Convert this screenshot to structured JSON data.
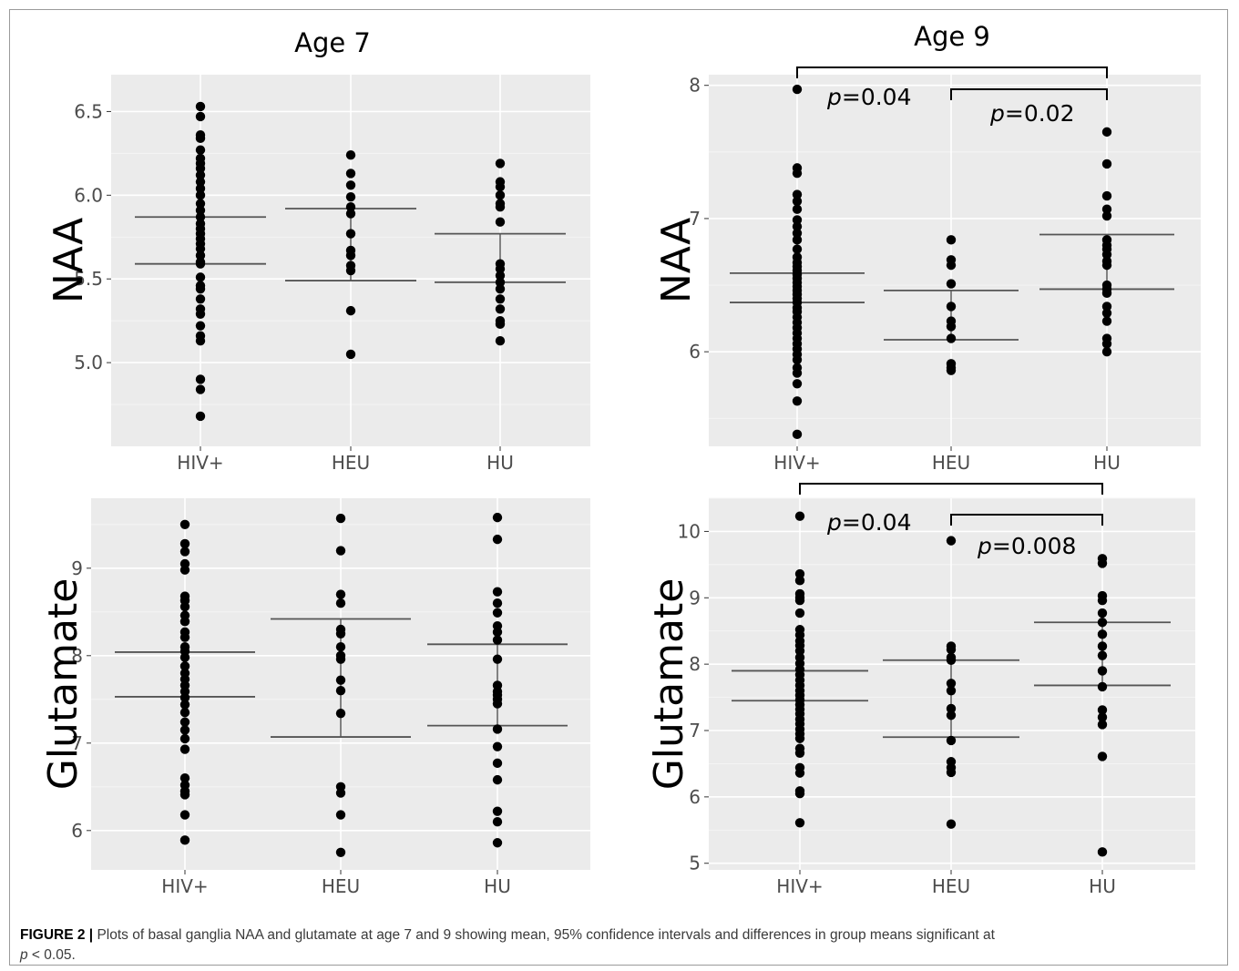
{
  "caption": {
    "label": "FIGURE 2 |",
    "text": " Plots of basal ganglia NAA and glutamate at age 7 and 9 showing mean, 95% confidence intervals and differences in group means significant at ",
    "pvar": "p",
    "tail": " < 0.05."
  },
  "chart_data": [
    {
      "type": "scatter",
      "panel": "top-left",
      "title": "Age 7",
      "ylabel": "NAA",
      "categories": [
        "HIV+",
        "HEU",
        "HU"
      ],
      "ylim": [
        4.5,
        6.72
      ],
      "yticks": [
        5.0,
        5.5,
        6.0,
        6.5
      ],
      "ytick_labels": [
        "5.0",
        "5.5",
        "6.0",
        "6.5"
      ],
      "ci": [
        [
          5.59,
          5.87
        ],
        [
          5.49,
          5.92
        ],
        [
          5.48,
          5.77
        ]
      ],
      "points": [
        [
          6.53,
          6.47,
          6.36,
          6.34,
          6.27,
          6.22,
          6.19,
          6.16,
          6.12,
          6.08,
          6.04,
          6.0,
          5.95,
          5.91,
          5.87,
          5.83,
          5.8,
          5.77,
          5.74,
          5.71,
          5.68,
          5.64,
          5.6,
          5.59,
          5.51,
          5.46,
          5.44,
          5.38,
          5.32,
          5.29,
          5.22,
          5.16,
          5.13,
          4.9,
          4.84,
          4.68
        ],
        [
          6.24,
          6.13,
          6.06,
          5.99,
          5.93,
          5.89,
          5.77,
          5.67,
          5.64,
          5.58,
          5.55,
          5.31,
          5.05
        ],
        [
          6.19,
          6.08,
          6.05,
          6.0,
          5.95,
          5.93,
          5.84,
          5.59,
          5.56,
          5.52,
          5.48,
          5.44,
          5.38,
          5.32,
          5.25,
          5.23,
          5.13
        ]
      ]
    },
    {
      "type": "scatter",
      "panel": "top-right",
      "title": "Age 9",
      "ylabel": "NAA",
      "categories": [
        "HIV+",
        "HEU",
        "HU"
      ],
      "ylim": [
        5.29,
        8.08
      ],
      "yticks": [
        6,
        7,
        8
      ],
      "ytick_labels": [
        "6",
        "7",
        "8"
      ],
      "ci": [
        [
          6.37,
          6.59
        ],
        [
          6.09,
          6.46
        ],
        [
          6.47,
          6.88
        ]
      ],
      "points": [
        [
          7.97,
          7.38,
          7.34,
          7.18,
          7.13,
          7.07,
          6.99,
          6.94,
          6.89,
          6.84,
          6.77,
          6.71,
          6.67,
          6.64,
          6.61,
          6.58,
          6.55,
          6.52,
          6.49,
          6.46,
          6.43,
          6.4,
          6.37,
          6.33,
          6.3,
          6.26,
          6.22,
          6.18,
          6.14,
          6.1,
          6.06,
          6.02,
          5.98,
          5.94,
          5.88,
          5.84,
          5.76,
          5.63,
          5.38
        ],
        [
          6.84,
          6.69,
          6.65,
          6.51,
          6.34,
          6.23,
          6.19,
          6.1,
          5.91,
          5.88,
          5.86
        ],
        [
          7.65,
          7.41,
          7.17,
          7.07,
          7.02,
          6.84,
          6.8,
          6.77,
          6.73,
          6.68,
          6.65,
          6.5,
          6.47,
          6.44,
          6.34,
          6.29,
          6.23,
          6.1,
          6.06,
          6.0
        ]
      ],
      "brackets": [
        {
          "from": "HIV+",
          "to": "HU",
          "label_var": "p",
          "label": "=0.04"
        },
        {
          "from": "HEU",
          "to": "HU",
          "label_var": "p",
          "label": "=0.02"
        }
      ]
    },
    {
      "type": "scatter",
      "panel": "bottom-left",
      "title": "",
      "ylabel": "Glutamate",
      "categories": [
        "HIV+",
        "HEU",
        "HU"
      ],
      "ylim": [
        5.55,
        9.8
      ],
      "yticks": [
        6,
        7,
        8,
        9
      ],
      "ytick_labels": [
        "6",
        "7",
        "8",
        "9"
      ],
      "ci": [
        [
          7.53,
          8.04
        ],
        [
          7.07,
          8.42
        ],
        [
          7.2,
          8.13
        ]
      ],
      "points": [
        [
          9.5,
          9.28,
          9.19,
          9.05,
          8.98,
          8.68,
          8.63,
          8.56,
          8.46,
          8.39,
          8.27,
          8.21,
          8.1,
          8.05,
          7.98,
          7.88,
          7.8,
          7.73,
          7.66,
          7.59,
          7.52,
          7.44,
          7.35,
          7.24,
          7.15,
          7.05,
          6.93,
          6.6,
          6.52,
          6.45,
          6.41,
          6.18,
          5.89
        ],
        [
          9.57,
          9.2,
          8.7,
          8.6,
          8.3,
          8.25,
          8.1,
          8.0,
          7.96,
          7.72,
          7.6,
          7.34,
          6.5,
          6.43,
          6.18,
          5.75
        ],
        [
          9.58,
          9.33,
          8.73,
          8.6,
          8.49,
          8.34,
          8.27,
          8.18,
          7.96,
          7.66,
          7.59,
          7.55,
          7.5,
          7.45,
          7.16,
          6.96,
          6.77,
          6.58,
          6.22,
          6.1,
          5.86
        ]
      ]
    },
    {
      "type": "scatter",
      "panel": "bottom-right",
      "title": "",
      "ylabel": "Glutamate",
      "categories": [
        "HIV+",
        "HEU",
        "HU"
      ],
      "ylim": [
        4.9,
        10.5
      ],
      "yticks": [
        5,
        6,
        7,
        8,
        9,
        10
      ],
      "ytick_labels": [
        "5",
        "6",
        "7",
        "8",
        "9",
        "10"
      ],
      "ci": [
        [
          7.45,
          7.9
        ],
        [
          6.9,
          8.06
        ],
        [
          7.68,
          8.63
        ]
      ],
      "points": [
        [
          10.23,
          9.36,
          9.26,
          9.06,
          9.0,
          8.96,
          8.77,
          8.52,
          8.44,
          8.35,
          8.28,
          8.2,
          8.1,
          8.01,
          7.92,
          7.84,
          7.76,
          7.68,
          7.6,
          7.53,
          7.46,
          7.39,
          7.32,
          7.25,
          7.17,
          7.1,
          7.02,
          6.95,
          6.88,
          6.73,
          6.66,
          6.44,
          6.36,
          6.09,
          6.05,
          5.61
        ],
        [
          9.86,
          8.27,
          8.22,
          8.1,
          8.06,
          7.71,
          7.6,
          7.33,
          7.23,
          6.85,
          6.53,
          6.44,
          6.37,
          5.59
        ],
        [
          9.59,
          9.52,
          9.03,
          8.96,
          8.77,
          8.63,
          8.45,
          8.27,
          8.13,
          7.9,
          7.66,
          7.31,
          7.2,
          7.09,
          6.61,
          5.17
        ]
      ],
      "brackets": [
        {
          "from": "HIV+",
          "to": "HU",
          "label_var": "p",
          "label": "=0.04"
        },
        {
          "from": "HEU",
          "to": "HU",
          "label_var": "p",
          "label": "=0.008"
        }
      ]
    }
  ]
}
